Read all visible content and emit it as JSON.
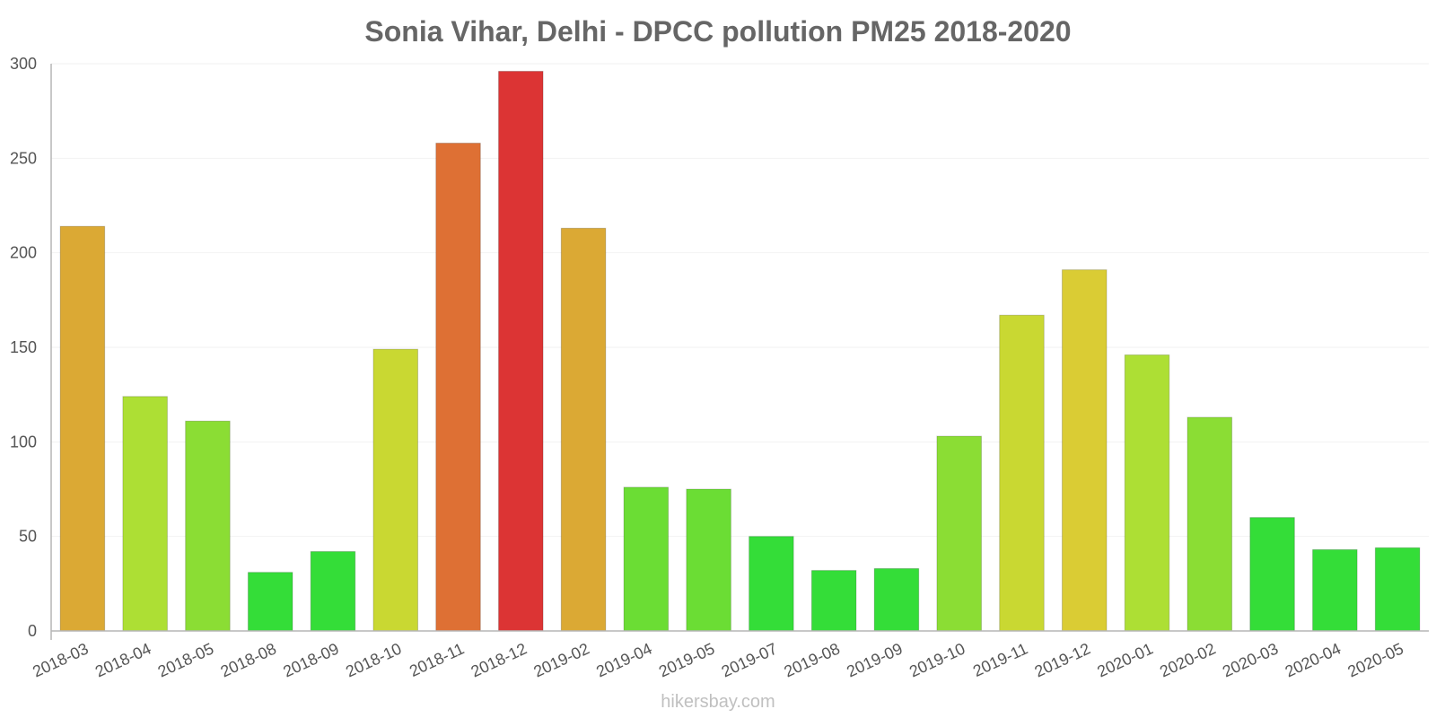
{
  "chart_data": {
    "type": "bar",
    "title": "Sonia Vihar, Delhi - DPCC pollution PM25 2018-2020",
    "xlabel": "",
    "ylabel": "",
    "ylim": [
      0,
      300
    ],
    "yticks": [
      0,
      50,
      100,
      150,
      200,
      250,
      300
    ],
    "grid": true,
    "categories": [
      "2018-03",
      "2018-04",
      "2018-05",
      "2018-08",
      "2018-09",
      "2018-10",
      "2018-11",
      "2018-12",
      "2019-02",
      "2019-04",
      "2019-05",
      "2019-07",
      "2019-08",
      "2019-09",
      "2019-10",
      "2019-11",
      "2019-12",
      "2020-01",
      "2020-02",
      "2020-03",
      "2020-04",
      "2020-05"
    ],
    "values": [
      214,
      124,
      111,
      31,
      42,
      149,
      258,
      296,
      213,
      76,
      75,
      50,
      32,
      33,
      103,
      167,
      191,
      146,
      113,
      60,
      43,
      44
    ],
    "colors": [
      "#dba934",
      "#addf34",
      "#8bdd34",
      "#34dd38",
      "#34dd38",
      "#c9d832",
      "#de7034",
      "#dc3434",
      "#dba934",
      "#6bdd34",
      "#6bdd34",
      "#34dd38",
      "#34dd38",
      "#34dd38",
      "#8bdd34",
      "#c9d832",
      "#dacc34",
      "#addf34",
      "#8bdd34",
      "#34dd38",
      "#34dd38",
      "#34dd38"
    ]
  },
  "credit": "hikersbay.com"
}
